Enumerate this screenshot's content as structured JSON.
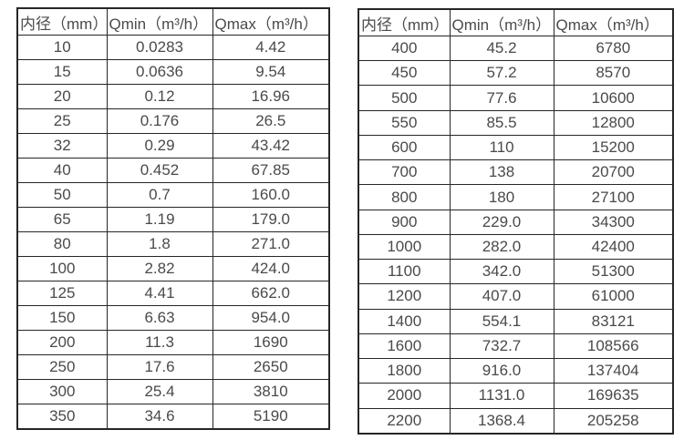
{
  "colors": {
    "border": "#262626",
    "text": "#4a4a4a",
    "background": "#ffffff"
  },
  "chart_data": [
    {
      "type": "table",
      "title": "",
      "columns": [
        "内径（mm）",
        "Qmin（m³/h）",
        "Qmax（m³/h）"
      ],
      "rows": [
        [
          "10",
          "0.0283",
          "4.42"
        ],
        [
          "15",
          "0.0636",
          "9.54"
        ],
        [
          "20",
          "0.12",
          "16.96"
        ],
        [
          "25",
          "0.176",
          "26.5"
        ],
        [
          "32",
          "0.29",
          "43.42"
        ],
        [
          "40",
          "0.452",
          "67.85"
        ],
        [
          "50",
          "0.7",
          "160.0"
        ],
        [
          "65",
          "1.19",
          "179.0"
        ],
        [
          "80",
          "1.8",
          "271.0"
        ],
        [
          "100",
          "2.82",
          "424.0"
        ],
        [
          "125",
          "4.41",
          "662.0"
        ],
        [
          "150",
          "6.63",
          "954.0"
        ],
        [
          "200",
          "11.3",
          "1690"
        ],
        [
          "250",
          "17.6",
          "2650"
        ],
        [
          "300",
          "25.4",
          "3810"
        ],
        [
          "350",
          "34.6",
          "5190"
        ]
      ]
    },
    {
      "type": "table",
      "title": "",
      "columns": [
        "内径（mm）",
        "Qmin（m³/h）",
        "Qmax（m³/h）"
      ],
      "rows": [
        [
          "400",
          "45.2",
          "6780"
        ],
        [
          "450",
          "57.2",
          "8570"
        ],
        [
          "500",
          "77.6",
          "10600"
        ],
        [
          "550",
          "85.5",
          "12800"
        ],
        [
          "600",
          "110",
          "15200"
        ],
        [
          "700",
          "138",
          "20700"
        ],
        [
          "800",
          "180",
          "27100"
        ],
        [
          "900",
          "229.0",
          "34300"
        ],
        [
          "1000",
          "282.0",
          "42400"
        ],
        [
          "1100",
          "342.0",
          "51300"
        ],
        [
          "1200",
          "407.0",
          "61000"
        ],
        [
          "1400",
          "554.1",
          "83121"
        ],
        [
          "1600",
          "732.7",
          "108566"
        ],
        [
          "1800",
          "916.0",
          "137404"
        ],
        [
          "2000",
          "1131.0",
          "169635"
        ],
        [
          "2200",
          "1368.4",
          "205258"
        ]
      ]
    }
  ]
}
